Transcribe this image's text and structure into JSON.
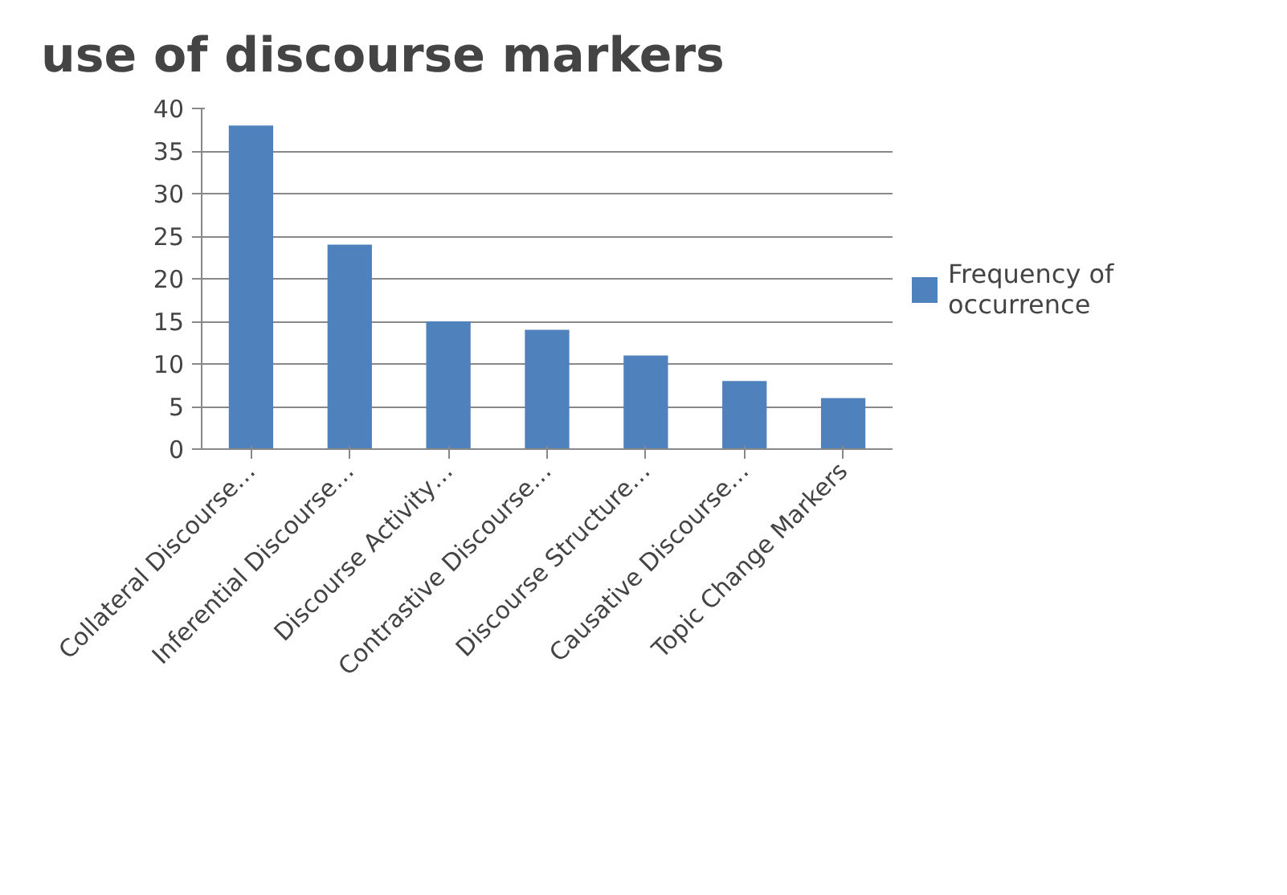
{
  "chart_data": {
    "type": "bar",
    "title": "use of discourse markers",
    "categories": [
      "Collateral Discourse…",
      "Inferential Discourse…",
      "Discourse Activity…",
      "Contrastive Discourse…",
      "Discourse Structure…",
      "Causative Discourse…",
      "Topic Change Markers"
    ],
    "series": [
      {
        "name": "Frequency of occurrence",
        "color": "#4f81bd",
        "values": [
          38,
          24,
          15,
          14,
          11,
          8,
          6
        ]
      }
    ],
    "ylim": [
      0,
      40
    ],
    "yticks": [
      0,
      5,
      10,
      15,
      20,
      25,
      30,
      35,
      40
    ],
    "grid": "y",
    "legend": "right"
  }
}
